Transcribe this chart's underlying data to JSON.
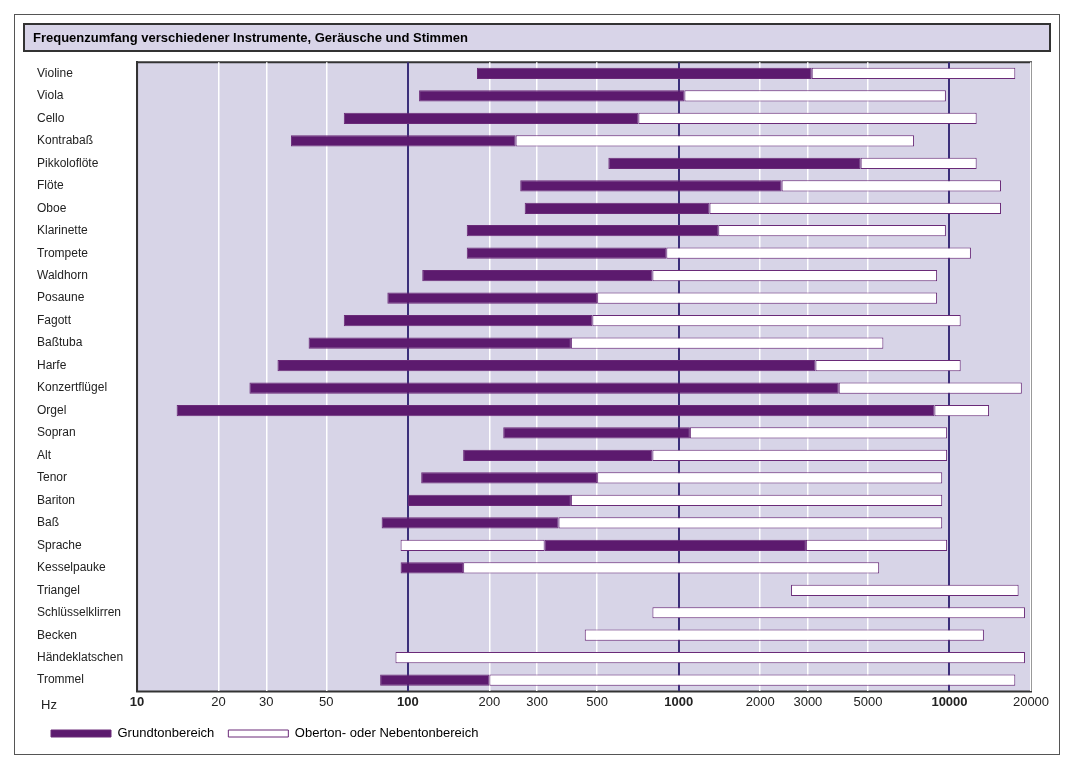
{
  "chart_data": {
    "type": "bar",
    "orientation": "horizontal",
    "title": "Frequenzumfang verschiedener Instrumente, Geräusche und Stimmen",
    "xlabel": "Hz",
    "categories": [
      "Violine",
      "Viola",
      "Cello",
      "Kontrabaß",
      "Pikkoloflöte",
      "Flöte",
      "Oboe",
      "Klarinette",
      "Trompete",
      "Waldhorn",
      "Posaune",
      "Fagott",
      "Baßtuba",
      "Harfe",
      "Konzertflügel",
      "Orgel",
      "Sopran",
      "Alt",
      "Tenor",
      "Bariton",
      "Baß",
      "Sprache",
      "Kesselpauke",
      "Triangel",
      "Schlüsselklirren",
      "Becken",
      "Händeklatschen",
      "Trommel"
    ],
    "series": [
      {
        "name": "Grundtonbereich",
        "color": "#5c1a6e",
        "base": [
          180,
          110,
          58,
          37,
          550,
          260,
          270,
          165,
          165,
          113,
          84,
          58,
          43,
          33,
          26,
          14,
          225,
          160,
          112,
          100,
          80,
          320,
          94,
          null,
          null,
          null,
          null,
          79
        ],
        "values": [
          2920,
          940,
          652,
          213,
          4150,
          2140,
          1030,
          1235,
          735,
          687,
          416,
          422,
          357,
          3167,
          3874,
          8786,
          875,
          640,
          388,
          300,
          280,
          2630,
          66,
          null,
          null,
          null,
          null,
          121
        ]
      },
      {
        "name": "Oberton- oder Nebentonbereich",
        "color": "#ffffff",
        "base": [
          3100,
          1050,
          710,
          250,
          4700,
          2400,
          1300,
          1400,
          900,
          800,
          500,
          480,
          400,
          3200,
          3900,
          8800,
          1100,
          800,
          500,
          400,
          360,
          2950,
          160,
          2600,
          800,
          450,
          90,
          200
        ],
        "values": [
          14400,
          8650,
          11890,
          7150,
          7900,
          13100,
          14200,
          8300,
          11100,
          8200,
          8500,
          10520,
          5300,
          7800,
          14600,
          5200,
          8700,
          9000,
          8900,
          9000,
          9040,
          6850,
          5340,
          15400,
          18200,
          12950,
          18910,
          17300
        ]
      },
      {
        "color": "#ffffff",
        "base": [
          null,
          null,
          null,
          null,
          null,
          null,
          null,
          null,
          null,
          null,
          null,
          null,
          null,
          null,
          null,
          null,
          null,
          null,
          null,
          null,
          null,
          94,
          null,
          null,
          null,
          null,
          null,
          null
        ],
        "values": [
          null,
          null,
          null,
          null,
          null,
          null,
          null,
          null,
          null,
          null,
          null,
          null,
          null,
          null,
          null,
          null,
          null,
          null,
          null,
          null,
          null,
          226,
          null,
          null,
          null,
          null,
          null,
          null
        ]
      }
    ],
    "xlim": [
      10,
      20000
    ],
    "xticks": [
      10,
      20,
      30,
      50,
      100,
      200,
      300,
      500,
      1000,
      2000,
      3000,
      5000,
      10000,
      20000
    ],
    "log": "x",
    "grid": "x",
    "legend": "bottom left"
  }
}
